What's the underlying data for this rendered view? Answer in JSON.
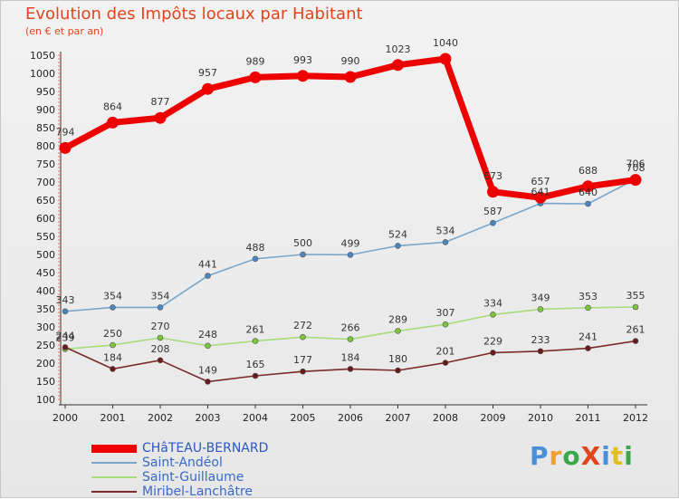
{
  "header": {
    "title": "Evolution des Impôts locaux par Habitant",
    "subtitle": "(en € et par an)"
  },
  "logo": {
    "text": "ProXiti",
    "colors": [
      "#4a90d9",
      "#f0a030",
      "#3aa84a",
      "#e0461e",
      "#4a90d9",
      "#e0c020",
      "#3aa84a"
    ]
  },
  "chart_data": {
    "type": "line",
    "x": [
      "2000",
      "2001",
      "2002",
      "2003",
      "2004",
      "2005",
      "2006",
      "2007",
      "2008",
      "2009",
      "2010",
      "2011",
      "2012"
    ],
    "ylim": [
      100,
      1050
    ],
    "yticks": [
      100,
      150,
      200,
      250,
      300,
      350,
      400,
      450,
      500,
      550,
      600,
      650,
      700,
      750,
      800,
      850,
      900,
      950,
      1000,
      1050
    ],
    "grid": false,
    "legend_position": "bottom-left",
    "series": [
      {
        "name": "CHâTEAU-BERNARD",
        "color": "#ee0000",
        "point_color": "#ee0000",
        "emphasis": true,
        "values": [
          794,
          864,
          877,
          957,
          989,
          993,
          990,
          1023,
          1040,
          673,
          657,
          688,
          706
        ]
      },
      {
        "name": "Saint-Andéol",
        "color": "#7aa6cc",
        "point_color": "#4a86c0",
        "emphasis": false,
        "values": [
          343,
          354,
          354,
          441,
          488,
          500,
          499,
          524,
          534,
          587,
          641,
          640,
          708
        ]
      },
      {
        "name": "Saint-Guillaume",
        "color": "#a6dc7a",
        "point_color": "#7cc63a",
        "emphasis": false,
        "values": [
          239,
          250,
          270,
          248,
          261,
          272,
          266,
          289,
          307,
          334,
          349,
          353,
          355
        ]
      },
      {
        "name": "Miribel-Lanchâtre",
        "color": "#7a2a2a",
        "point_color": "#6a1a1a",
        "emphasis": false,
        "values": [
          244,
          184,
          208,
          149,
          165,
          177,
          184,
          180,
          201,
          229,
          233,
          241,
          261
        ]
      }
    ]
  }
}
